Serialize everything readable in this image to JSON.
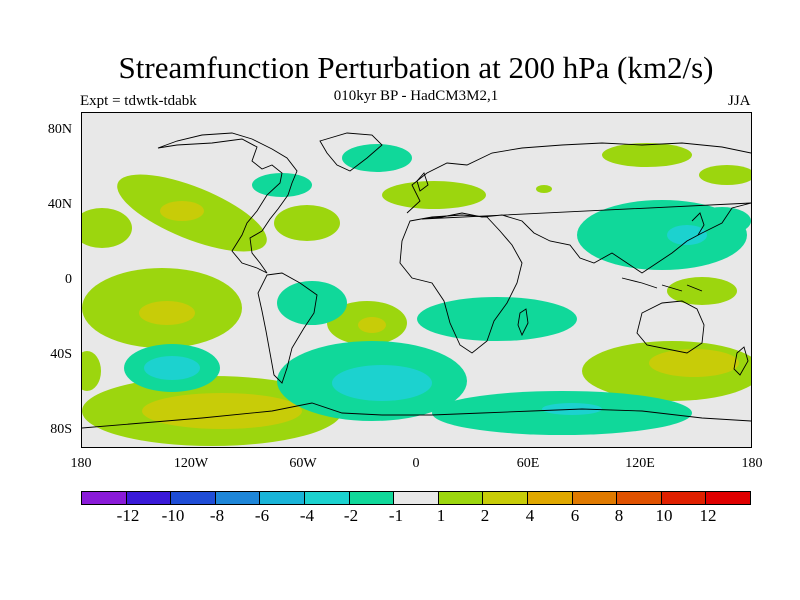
{
  "header": {
    "title": "Streamfunction Perturbation at 200 hPa (km2/s)",
    "subtitle": "010kyr BP - HadCM3M2,1",
    "expt": "Expt = tdwtk-tdabk",
    "season": "JJA"
  },
  "axes": {
    "lat_labels": [
      "80N",
      "40N",
      "0",
      "40S",
      "80S"
    ],
    "lon_labels": [
      "180",
      "120W",
      "60W",
      "0",
      "60E",
      "120E",
      "180"
    ]
  },
  "legend": {
    "labels": [
      "-12",
      "-10",
      "-8",
      "-6",
      "-4",
      "-2",
      "-1",
      "1",
      "2",
      "4",
      "6",
      "8",
      "10",
      "12"
    ],
    "colors": [
      "#8a1bd8",
      "#3a1ad8",
      "#1f4dd6",
      "#1e86d8",
      "#19b4d8",
      "#1cd2cf",
      "#10d89a",
      "#e8e8e8",
      "#9cd60e",
      "#c8cc08",
      "#e0a800",
      "#e07a00",
      "#e05200",
      "#e02000",
      "#e00000"
    ]
  },
  "field_colors": {
    "background": "#e8e8e8",
    "neg_1": "#10d89a",
    "neg_2": "#1cd2cf",
    "neg_4": "#19b4d8",
    "pos_1": "#9cd60e",
    "pos_2": "#c8cc08",
    "coast": "#000000"
  }
}
